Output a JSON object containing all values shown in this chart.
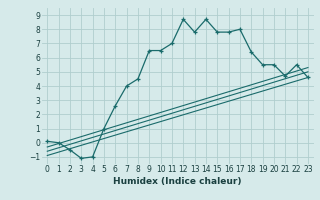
{
  "xlabel": "Humidex (Indice chaleur)",
  "ylabel": "",
  "bg_color": "#d6eaea",
  "grid_color": "#b0cece",
  "line_color": "#1a6b6b",
  "xlim": [
    -0.5,
    23.5
  ],
  "ylim": [
    -1.5,
    9.5
  ],
  "xticks": [
    0,
    1,
    2,
    3,
    4,
    5,
    6,
    7,
    8,
    9,
    10,
    11,
    12,
    13,
    14,
    15,
    16,
    17,
    18,
    19,
    20,
    21,
    22,
    23
  ],
  "yticks": [
    -1,
    0,
    1,
    2,
    3,
    4,
    5,
    6,
    7,
    8,
    9
  ],
  "curve_x": [
    0,
    1,
    2,
    3,
    4,
    5,
    6,
    7,
    8,
    9,
    10,
    11,
    12,
    13,
    14,
    15,
    16,
    17,
    18,
    19,
    20,
    21,
    22,
    23
  ],
  "curve_y": [
    0.1,
    0.0,
    -0.5,
    -1.1,
    -1.0,
    1.0,
    2.6,
    4.0,
    4.5,
    6.5,
    6.5,
    7.0,
    8.7,
    7.8,
    8.7,
    7.8,
    7.8,
    8.0,
    6.4,
    5.5,
    5.5,
    4.7,
    5.5,
    4.6
  ],
  "line1_x": [
    0,
    23
  ],
  "line1_y": [
    -0.9,
    4.6
  ],
  "line2_x": [
    0,
    23
  ],
  "line2_y": [
    -0.6,
    5.0
  ],
  "line3_x": [
    0,
    23
  ],
  "line3_y": [
    -0.3,
    5.3
  ],
  "tick_fontsize": 5.5,
  "xlabel_fontsize": 6.5,
  "xlabel_color": "#1a4040"
}
